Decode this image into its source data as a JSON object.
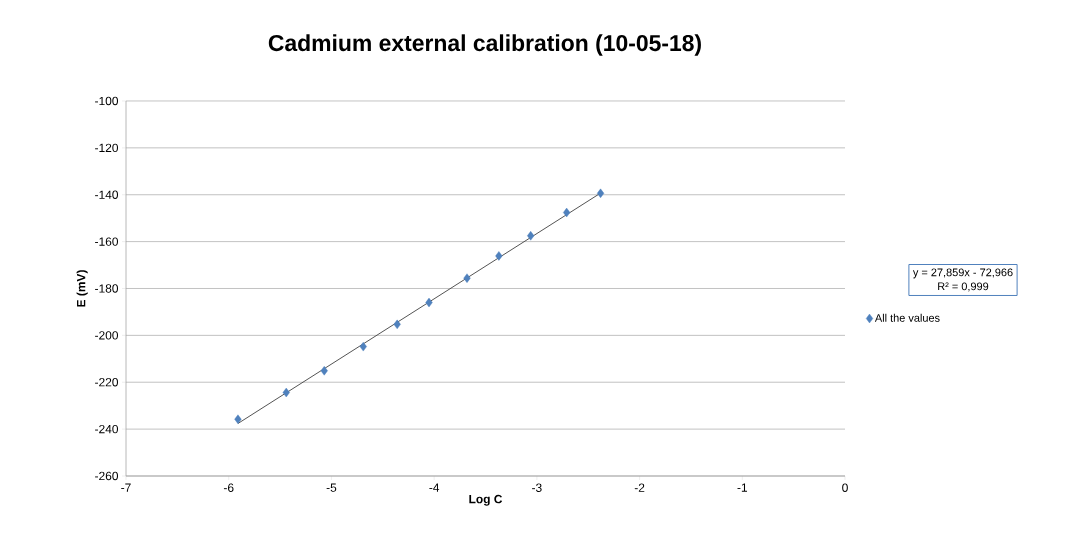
{
  "chart_data": {
    "type": "scatter",
    "title": "Cadmium external calibration (10-05-18)",
    "xlabel": "Log C",
    "ylabel": "E (mV)",
    "xlim": [
      -7,
      0
    ],
    "xticks": [
      -7,
      -6,
      -5,
      -4,
      -3,
      -2,
      -1,
      0
    ],
    "ylim": [
      -260,
      -100
    ],
    "yticks": [
      -260,
      -240,
      -220,
      -200,
      -180,
      -160,
      -140,
      -120,
      -100
    ],
    "grid": "y",
    "legend": "right",
    "marker": "diamond",
    "annotations": [
      "y = 27,859x - 72,966",
      "R² = 0,999"
    ],
    "series": [
      {
        "name": "All the values",
        "color": "#4f81bd",
        "x": [
          -5.91,
          -5.44,
          -5.07,
          -4.69,
          -4.36,
          -4.05,
          -3.68,
          -3.37,
          -3.06,
          -2.71,
          -2.38
        ],
        "values": [
          -235.8,
          -224.4,
          -215.1,
          -204.8,
          -195.3,
          -186.0,
          -175.6,
          -166.1,
          -157.5,
          -147.6,
          -139.4
        ]
      },
      {
        "type": "line",
        "color": "#404040",
        "marker": "none",
        "x": [
          -5.91,
          -2.38
        ],
        "values": [
          -237.6,
          -139.3
        ]
      }
    ]
  }
}
